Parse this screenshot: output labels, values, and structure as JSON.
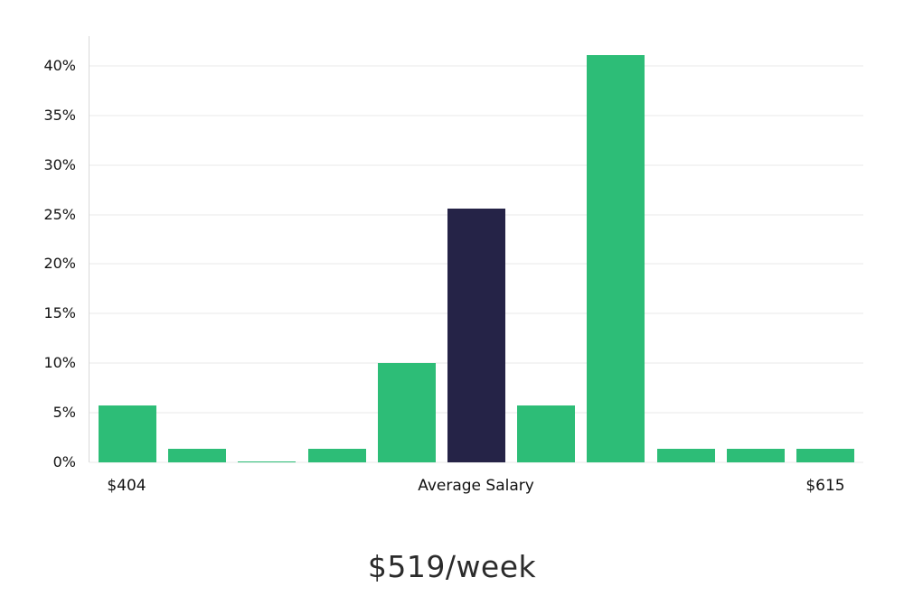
{
  "chart_data": {
    "type": "bar",
    "title": "",
    "caption": "$519/week",
    "values": [
      5.7,
      1.4,
      0.1,
      1.4,
      10.0,
      25.6,
      5.7,
      41.1,
      1.4,
      1.4,
      1.4
    ],
    "highlight_index": 5,
    "bar_color": "#2dbd77",
    "highlight_color": "#252347",
    "ylim": [
      0,
      43
    ],
    "yticks": [
      0,
      5,
      10,
      15,
      20,
      25,
      30,
      35,
      40
    ],
    "ytick_suffix": "%",
    "grid": true,
    "legend": false,
    "x_labels": {
      "left": "$404",
      "center": "Average Salary",
      "right": "$615"
    }
  }
}
